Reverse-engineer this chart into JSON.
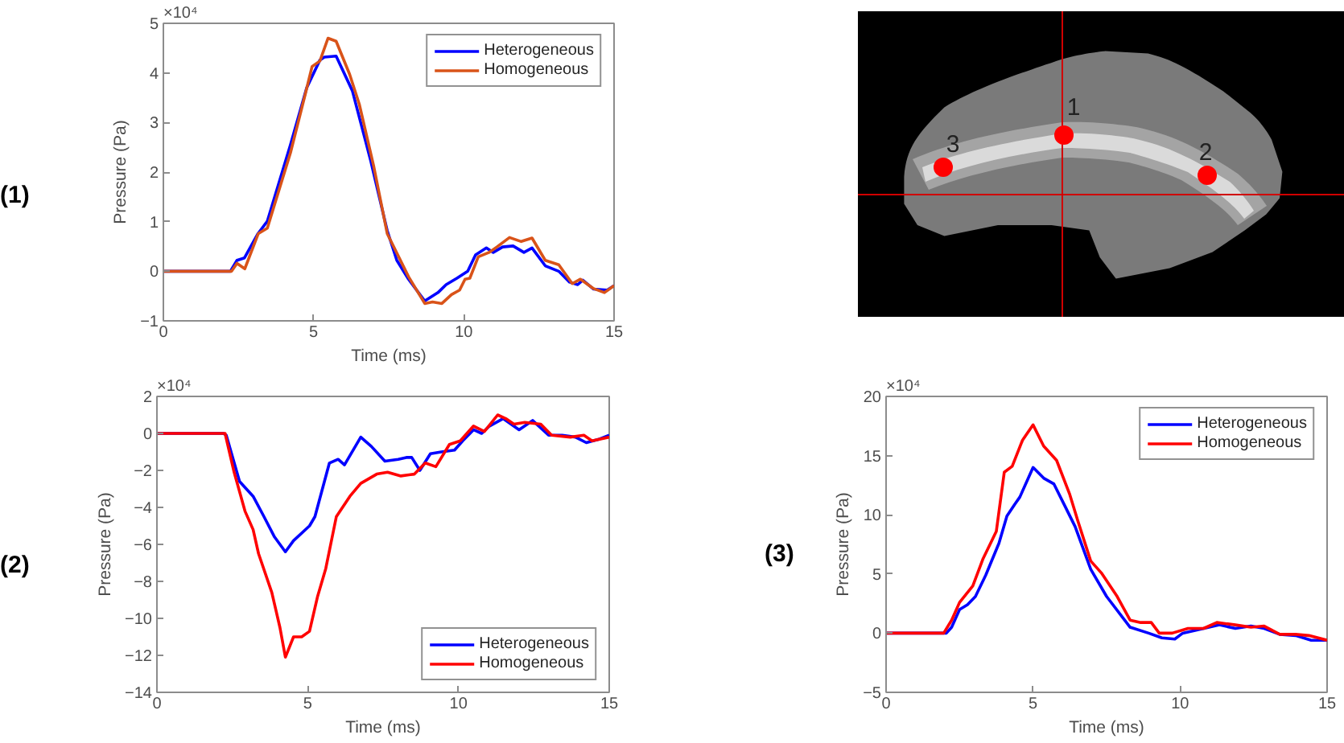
{
  "chart_data": [
    {
      "type": "line",
      "xlabel": "Time (ms)",
      "ylabel": "Pressure (Pa)",
      "annotations": [
        "(1)",
        "×10⁴"
      ],
      "xlim": [
        0,
        15
      ],
      "ylim": [
        -1,
        5
      ],
      "xticks": [
        0,
        5,
        10,
        15
      ],
      "yticks": [
        -1,
        0,
        1,
        2,
        3,
        4,
        5
      ],
      "legend": "top right",
      "series": [
        {
          "name": "Heterogeneous",
          "color": "#0000ff",
          "x": [
            0,
            2.23,
            2.45,
            2.7,
            3.15,
            3.46,
            4.23,
            4.77,
            5.21,
            5.36,
            5.75,
            6.29,
            6.9,
            7.45,
            7.77,
            8.16,
            8.7,
            9.14,
            9.41,
            9.77,
            10.13,
            10.39,
            10.75,
            10.98,
            11.29,
            11.64,
            12.0,
            12.27,
            12.71,
            13.16,
            13.52,
            13.79,
            13.96,
            14.32,
            14.77,
            15.0
          ],
          "values": [
            0,
            0,
            0.22,
            0.27,
            0.76,
            1.01,
            2.55,
            3.7,
            4.26,
            4.32,
            4.34,
            3.64,
            2.23,
            0.82,
            0.22,
            -0.16,
            -0.6,
            -0.43,
            -0.27,
            -0.14,
            0,
            0.33,
            0.47,
            0.38,
            0.49,
            0.51,
            0.38,
            0.47,
            0.11,
            0,
            -0.22,
            -0.27,
            -0.18,
            -0.36,
            -0.38,
            -0.29
          ]
        },
        {
          "name": "Homogeneous",
          "color": "#d95319",
          "x": [
            0,
            2.27,
            2.45,
            2.71,
            3.16,
            3.46,
            4.23,
            4.73,
            4.95,
            5.21,
            5.48,
            5.75,
            6.2,
            6.52,
            7.0,
            7.45,
            8.16,
            8.7,
            8.96,
            9.27,
            9.59,
            9.86,
            10.04,
            10.2,
            10.48,
            10.84,
            11.1,
            11.52,
            11.91,
            12.27,
            12.71,
            13.16,
            13.61,
            13.88,
            14.32,
            14.68,
            15.0
          ],
          "values": [
            0,
            0,
            0.16,
            0.05,
            0.76,
            0.87,
            2.39,
            3.59,
            4.13,
            4.24,
            4.7,
            4.64,
            3.97,
            3.37,
            2.12,
            0.76,
            -0.11,
            -0.65,
            -0.62,
            -0.65,
            -0.47,
            -0.38,
            -0.16,
            -0.14,
            0.29,
            0.38,
            0.49,
            0.68,
            0.6,
            0.67,
            0.22,
            0.13,
            -0.25,
            -0.16,
            -0.35,
            -0.43,
            -0.29
          ]
        }
      ]
    },
    {
      "type": "other",
      "annotations": [
        "1",
        "2",
        "3"
      ]
    },
    {
      "type": "line",
      "xlabel": "Time (ms)",
      "ylabel": "Pressure (Pa)",
      "annotations": [
        "(2)",
        "×10⁴"
      ],
      "xlim": [
        0,
        15
      ],
      "ylim": [
        -14,
        2
      ],
      "xticks": [
        0,
        5,
        10,
        15
      ],
      "yticks": [
        -14,
        -12,
        -10,
        -8,
        -6,
        -4,
        -2,
        0,
        2
      ],
      "legend": "bottom right",
      "series": [
        {
          "name": "Heterogeneous",
          "color": "#0000ff",
          "x": [
            0,
            2.21,
            2.3,
            2.74,
            3.19,
            3.55,
            3.9,
            4.26,
            4.53,
            5.06,
            5.24,
            5.72,
            6.01,
            6.22,
            6.76,
            7.11,
            7.56,
            8.0,
            8.27,
            8.45,
            8.72,
            9.07,
            9.43,
            9.87,
            10.14,
            10.5,
            10.77,
            11.03,
            11.48,
            12.01,
            12.46,
            12.99,
            13.44,
            13.88,
            14.24,
            14.68,
            15.0
          ],
          "values": [
            0,
            0,
            -0.1,
            -2.6,
            -3.4,
            -4.5,
            -5.6,
            -6.4,
            -5.8,
            -5.0,
            -4.5,
            -1.6,
            -1.4,
            -1.7,
            -0.2,
            -0.7,
            -1.5,
            -1.4,
            -1.3,
            -1.3,
            -2.0,
            -1.1,
            -1.0,
            -0.9,
            -0.4,
            0.2,
            0.0,
            0.4,
            0.8,
            0.2,
            0.7,
            -0.1,
            -0.1,
            -0.2,
            -0.5,
            -0.3,
            -0.1
          ]
        },
        {
          "name": "Homogeneous",
          "color": "#ff0000",
          "x": [
            0,
            2.26,
            2.56,
            2.92,
            3.19,
            3.37,
            3.81,
            4.08,
            4.26,
            4.53,
            4.8,
            5.06,
            5.33,
            5.6,
            5.95,
            6.4,
            6.76,
            7.29,
            7.65,
            8.09,
            8.54,
            8.9,
            9.25,
            9.7,
            10.06,
            10.5,
            10.86,
            11.3,
            11.57,
            11.84,
            12.2,
            12.73,
            13.09,
            13.71,
            14.16,
            14.43,
            15.0
          ],
          "values": [
            0,
            0,
            -2.1,
            -4.2,
            -5.2,
            -6.5,
            -8.6,
            -10.5,
            -12.1,
            -11.0,
            -11.0,
            -10.7,
            -8.8,
            -7.3,
            -4.5,
            -3.4,
            -2.7,
            -2.2,
            -2.1,
            -2.3,
            -2.2,
            -1.6,
            -1.8,
            -0.6,
            -0.4,
            0.4,
            0.1,
            1.0,
            0.8,
            0.5,
            0.6,
            0.5,
            -0.1,
            -0.2,
            -0.1,
            -0.4,
            -0.2
          ]
        }
      ]
    },
    {
      "type": "line",
      "xlabel": "Time (ms)",
      "ylabel": "Pressure (Pa)",
      "annotations": [
        "(3)",
        "×10⁴"
      ],
      "xlim": [
        0,
        15
      ],
      "ylim": [
        -5,
        20
      ],
      "xticks": [
        0,
        5,
        10,
        15
      ],
      "yticks": [
        -5,
        0,
        5,
        10,
        15,
        20
      ],
      "legend": "top right",
      "series": [
        {
          "name": "Heterogeneous",
          "color": "#0000ff",
          "x": [
            0,
            2.05,
            2.23,
            2.5,
            2.77,
            3.04,
            3.39,
            3.84,
            4.11,
            4.38,
            4.55,
            5.0,
            5.36,
            5.71,
            6.07,
            6.43,
            6.96,
            7.5,
            8.3,
            8.93,
            9.38,
            9.82,
            10.09,
            10.63,
            11.34,
            11.88,
            12.41,
            12.86,
            13.39,
            13.93,
            14.46,
            15.0
          ],
          "values": [
            0,
            0,
            0.5,
            2.0,
            2.4,
            3.1,
            4.9,
            7.6,
            9.9,
            10.9,
            11.5,
            14.0,
            13.1,
            12.6,
            10.8,
            9.0,
            5.4,
            3.1,
            0.5,
            0,
            -0.4,
            -0.5,
            0,
            0.3,
            0.7,
            0.4,
            0.6,
            0.4,
            -0.1,
            -0.2,
            -0.6,
            -0.6
          ]
        },
        {
          "name": "Homogeneous",
          "color": "#ff0000",
          "x": [
            0,
            1.96,
            2.23,
            2.5,
            2.95,
            3.3,
            3.75,
            4.02,
            4.29,
            4.64,
            5.0,
            5.36,
            5.8,
            6.25,
            6.52,
            6.96,
            7.32,
            7.86,
            8.3,
            8.66,
            9.02,
            9.29,
            9.73,
            10.27,
            10.8,
            11.25,
            11.88,
            12.41,
            12.86,
            13.39,
            13.93,
            14.38,
            15.0
          ],
          "values": [
            0,
            0,
            1.1,
            2.6,
            4.0,
            6.3,
            8.6,
            13.6,
            14.1,
            16.3,
            17.6,
            15.8,
            14.6,
            11.7,
            9.5,
            6.1,
            5.1,
            3.1,
            1.1,
            0.9,
            0.9,
            0,
            0,
            0.4,
            0.4,
            0.9,
            0.7,
            0.5,
            0.6,
            -0.1,
            -0.1,
            -0.2,
            -0.6
          ]
        }
      ]
    }
  ]
}
